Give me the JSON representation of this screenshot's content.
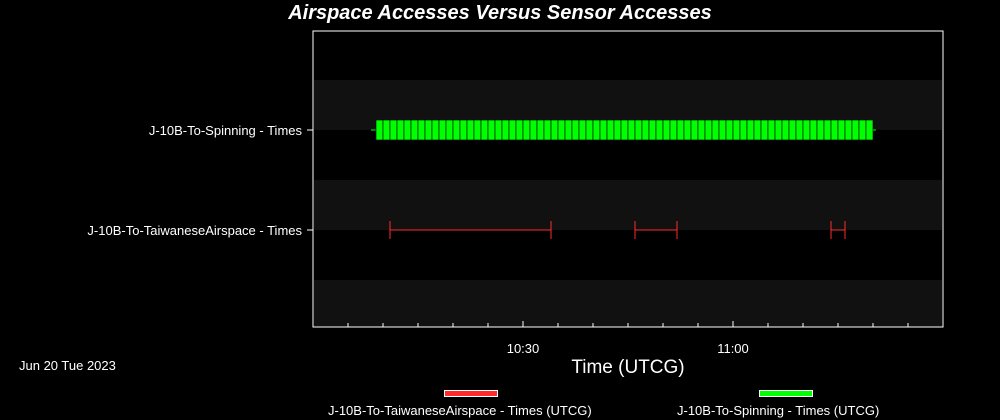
{
  "chart_data": {
    "type": "timeline",
    "title": "Airspace Accesses Versus Sensor Accesses",
    "date_label": "Jun 20 Tue 2023",
    "xlabel": "Time (UTCG)",
    "x_ticks": [
      "10:30",
      "11:00"
    ],
    "xlim": [
      "10:00",
      "11:30"
    ],
    "rows": [
      {
        "label": "J-10B-To-Spinning - Times",
        "color": "#00ff00",
        "intervals": [
          [
            "10:09",
            "11:20"
          ]
        ],
        "dense_access_segments": [
          "10:09",
          "10:10",
          "10:11",
          "10:12",
          "10:13",
          "10:14",
          "10:15",
          "10:16",
          "10:17",
          "10:18",
          "10:19",
          "10:20",
          "10:21",
          "10:22",
          "10:23",
          "10:24",
          "10:25",
          "10:26",
          "10:27",
          "10:28",
          "10:29",
          "10:30",
          "10:31",
          "10:32",
          "10:33",
          "10:34",
          "10:35",
          "10:36",
          "10:37",
          "10:38",
          "10:39",
          "10:40",
          "10:41",
          "10:42",
          "10:43",
          "10:44",
          "10:45",
          "10:46",
          "10:47",
          "10:48",
          "10:49",
          "10:50",
          "10:51",
          "10:52",
          "10:53",
          "10:54",
          "10:55",
          "10:56",
          "10:57",
          "10:58",
          "10:59",
          "11:00",
          "11:01",
          "11:02",
          "11:03",
          "11:04",
          "11:05",
          "11:06",
          "11:07",
          "11:08",
          "11:09",
          "11:10",
          "11:11",
          "11:12",
          "11:13",
          "11:14",
          "11:15",
          "11:16",
          "11:17",
          "11:18",
          "11:19"
        ]
      },
      {
        "label": "J-10B-To-TaiwaneseAirspace - Times",
        "color": "#ff2a2a",
        "intervals": [
          [
            "10:11",
            "10:34"
          ],
          [
            "10:46",
            "10:52"
          ],
          [
            "11:14",
            "11:16"
          ]
        ]
      }
    ],
    "legend": [
      {
        "label": "J-10B-To-TaiwaneseAirspace - Times (UTCG)",
        "color": "#ff2a2a"
      },
      {
        "label": "J-10B-To-Spinning - Times (UTCG)",
        "color": "#00ff00"
      }
    ]
  }
}
